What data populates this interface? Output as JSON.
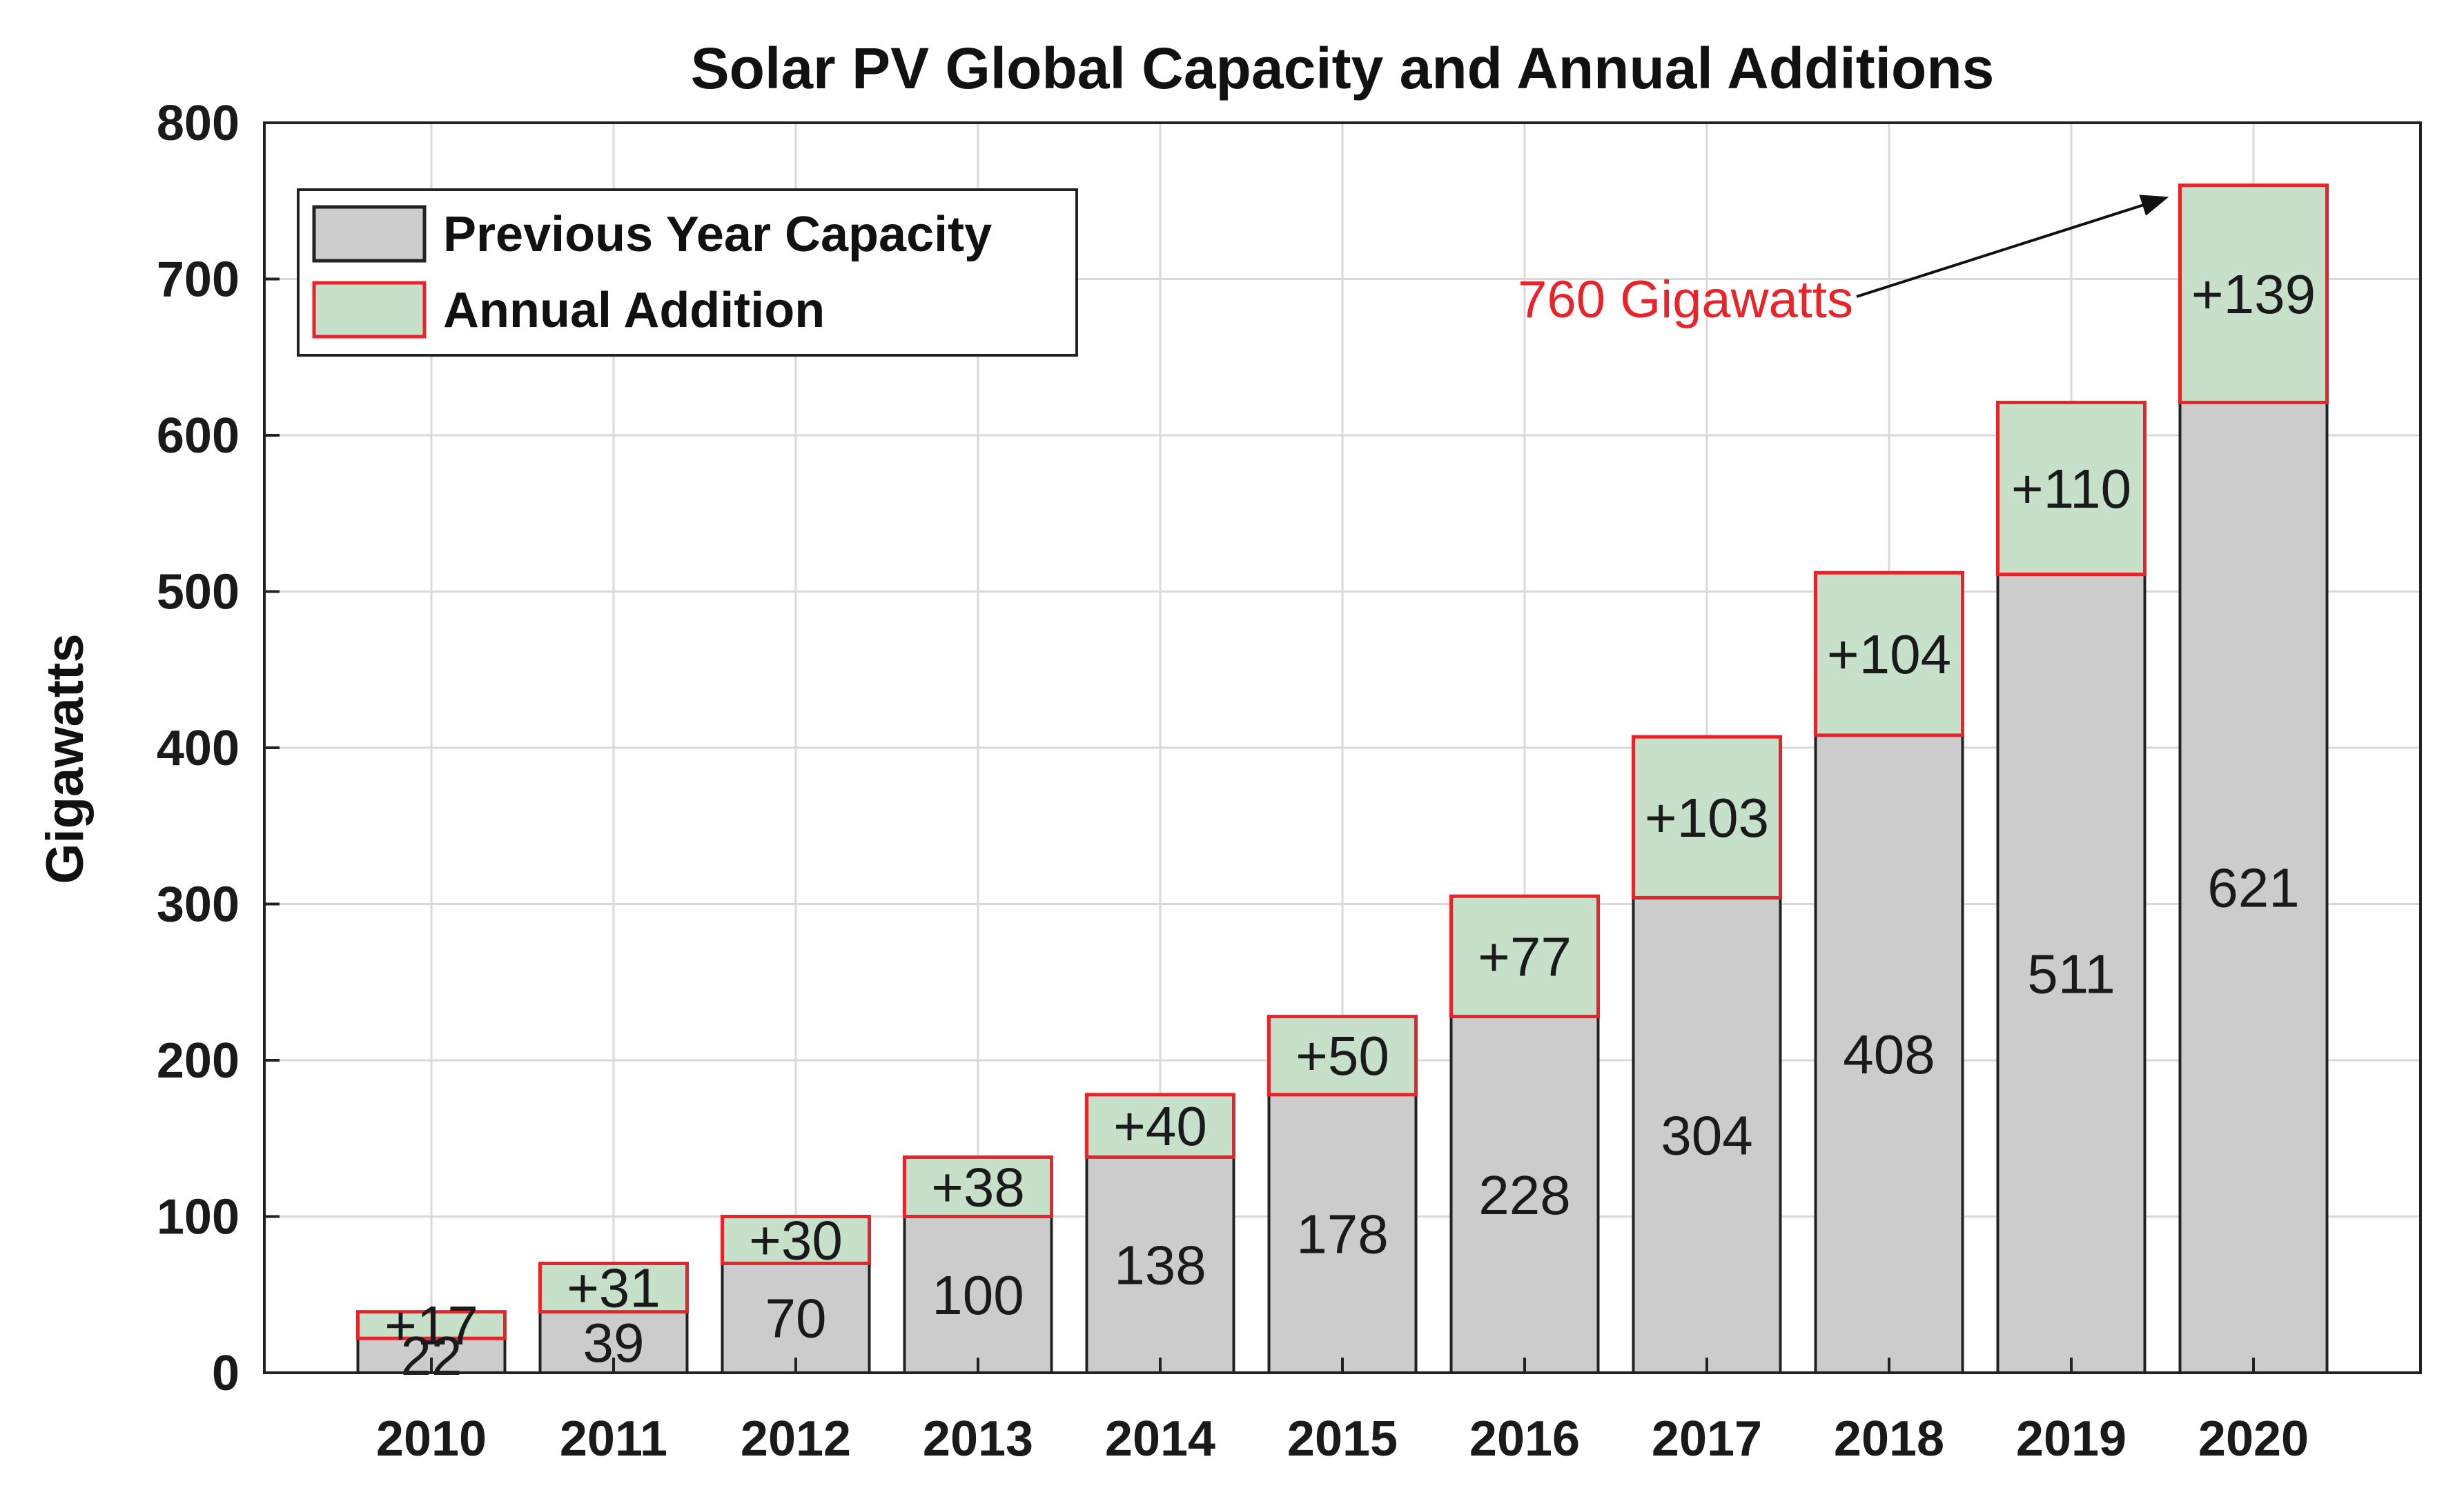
{
  "chart_data": {
    "type": "bar",
    "stacked": true,
    "title": "Solar PV Global Capacity and Annual Additions",
    "xlabel": "",
    "ylabel": "Gigawatts",
    "ylim": [
      0,
      800
    ],
    "yticks": [
      0,
      100,
      200,
      300,
      400,
      500,
      600,
      700,
      800
    ],
    "categories": [
      "2010",
      "2011",
      "2012",
      "2013",
      "2014",
      "2015",
      "2016",
      "2017",
      "2018",
      "2019",
      "2020"
    ],
    "series": [
      {
        "name": "Previous Year Capacity",
        "values": [
          22,
          39,
          70,
          100,
          138,
          178,
          228,
          304,
          408,
          511,
          621
        ],
        "labels": [
          "22",
          "39",
          "70",
          "100",
          "138",
          "178",
          "228",
          "304",
          "408",
          "511",
          "621"
        ],
        "fill": "#cccccc",
        "edge": "#222222"
      },
      {
        "name": "Annual Addition",
        "values": [
          17,
          31,
          30,
          38,
          40,
          50,
          77,
          103,
          104,
          110,
          139
        ],
        "labels": [
          "+17",
          "+31",
          "+30",
          "+38",
          "+40",
          "+50",
          "+77",
          "+103",
          "+104",
          "+110",
          "+139"
        ],
        "fill": "#c6e0c9",
        "edge": "#e8242a"
      }
    ],
    "grid": true,
    "legend_position": "top-left",
    "annotation": {
      "text": "760 Gigawatts",
      "color": "#e8242a",
      "target_category": "2020",
      "target_value": 760
    }
  }
}
